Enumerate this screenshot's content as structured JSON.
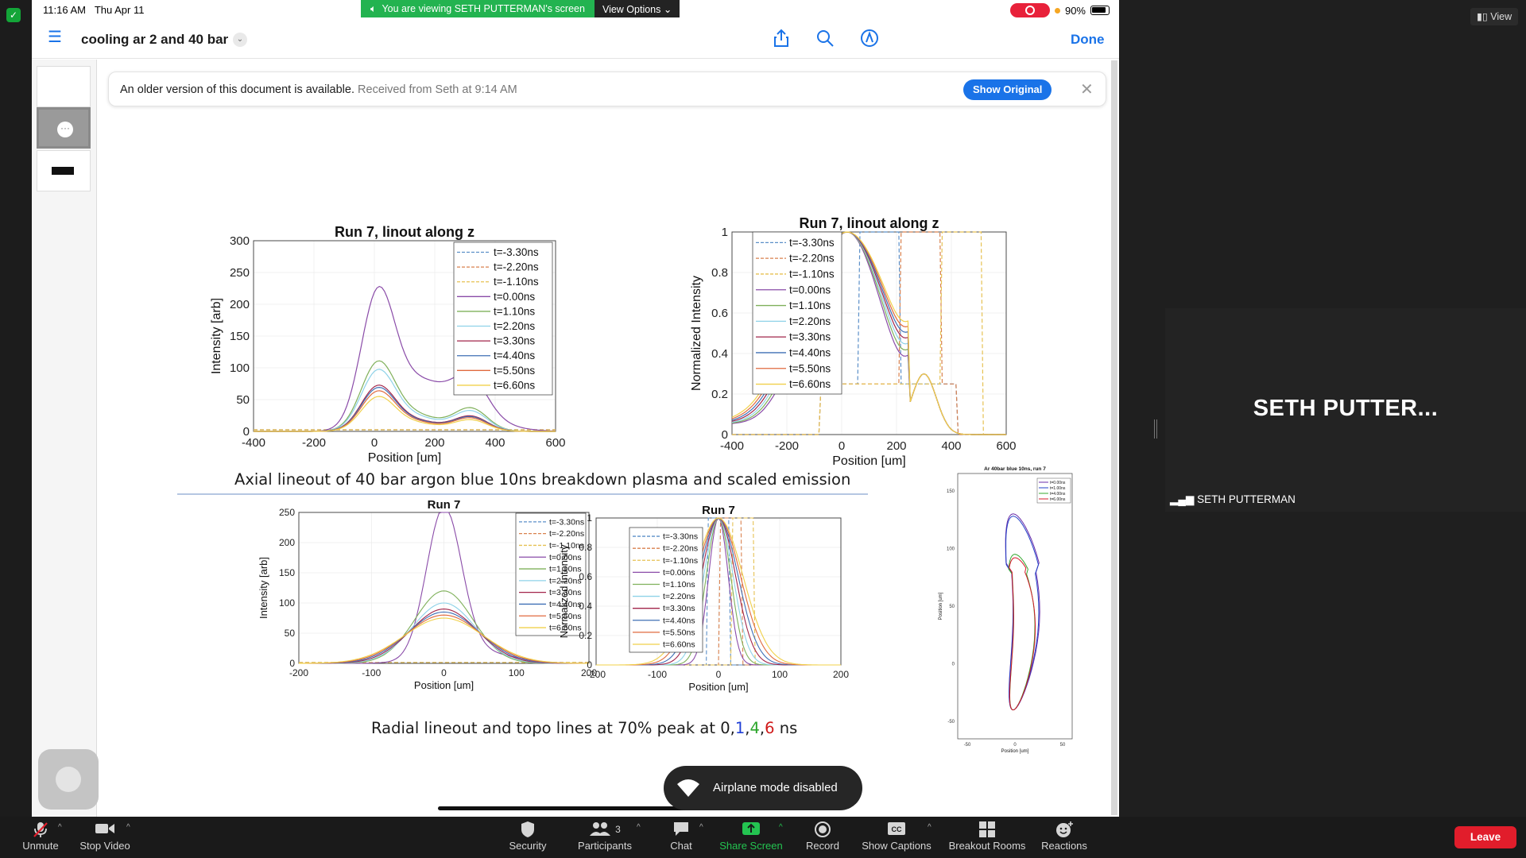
{
  "meeting": {
    "viewing_banner": "You are viewing SETH PUTTERMAN's screen",
    "view_options": "View Options",
    "view_button": "View",
    "participant_name": "SETH PUTTER...",
    "participant_label": "SETH PUTTERMAN"
  },
  "status_bar": {
    "time": "11:16 AM",
    "date": "Thu Apr 11",
    "battery": "90%"
  },
  "document": {
    "title": "cooling ar 2 and 40 bar",
    "done_label": "Done",
    "banner": {
      "message": "An older version of this document is available.",
      "received": "Received from Seth at 9:14 AM",
      "button": "Show Original"
    },
    "slide": {
      "axial_caption": "Axial lineout  of 40 bar argon blue 10ns breakdown plasma  and scaled emission",
      "radial_caption_prefix": "Radial lineout and topo lines at 70% peak at ",
      "radial_caption_times": [
        {
          "text": "0",
          "color": "#1c1c1c"
        },
        {
          "text": ",",
          "color": "#1c1c1c"
        },
        {
          "text": "1",
          "color": "#1f3fd6"
        },
        {
          "text": ",",
          "color": "#1c1c1c"
        },
        {
          "text": "4",
          "color": "#2aa52a"
        },
        {
          "text": ",",
          "color": "#1c1c1c"
        },
        {
          "text": "6",
          "color": "#d01a1a"
        },
        {
          "text": " ns",
          "color": "#1c1c1c"
        }
      ]
    }
  },
  "toast": {
    "text": "Airplane mode disabled"
  },
  "toolbar": {
    "unmute": "Unmute",
    "stop_video": "Stop Video",
    "security": "Security",
    "participants": "Participants",
    "participants_count": "3",
    "chat": "Chat",
    "share_screen": "Share Screen",
    "record": "Record",
    "show_captions": "Show Captions",
    "breakout_rooms": "Breakout Rooms",
    "reactions": "Reactions",
    "leave": "Leave"
  },
  "colors": {
    "ios_blue": "#1a73e8",
    "zoom_green": "#23b350",
    "leave_red": "#e11d2b"
  },
  "chart_data": [
    {
      "type": "line",
      "title": "Run 7, linout along z",
      "xlabel": "Position [um]",
      "ylabel": "Intensity [arb]",
      "xlim": [
        -400,
        600
      ],
      "ylim": [
        0,
        300
      ],
      "xticks": [
        -400,
        -200,
        0,
        200,
        400,
        600
      ],
      "yticks": [
        0,
        50,
        100,
        150,
        200,
        250,
        300
      ],
      "legend": [
        "t=-3.30ns",
        "t=-2.20ns",
        "t=-1.10ns",
        "t=0.00ns",
        "t=1.10ns",
        "t=2.20ns",
        "t=3.30ns",
        "t=4.40ns",
        "t=5.50ns",
        "t=6.60ns"
      ],
      "legend_position": "top-right",
      "series_peaks": [
        3,
        3,
        3,
        250,
        125,
        110,
        82,
        78,
        72,
        62
      ]
    },
    {
      "type": "line",
      "title": "Run 7, linout along z",
      "xlabel": "Position [um]",
      "ylabel": "Normalized Intensity",
      "xlim": [
        -400,
        600
      ],
      "ylim": [
        0,
        1
      ],
      "xticks": [
        -400,
        -200,
        0,
        200,
        400,
        600
      ],
      "yticks": [
        0,
        0.2,
        0.4,
        0.6,
        0.8,
        1
      ],
      "legend": [
        "t=-3.30ns",
        "t=-2.20ns",
        "t=-1.10ns",
        "t=0.00ns",
        "t=1.10ns",
        "t=2.20ns",
        "t=3.30ns",
        "t=4.40ns",
        "t=5.50ns",
        "t=6.60ns"
      ],
      "legend_position": "top-left"
    },
    {
      "type": "line",
      "title": "Run 7",
      "xlabel": "Position [um]",
      "ylabel": "Intensity [arb]",
      "xlim": [
        -200,
        200
      ],
      "ylim": [
        0,
        250
      ],
      "xticks": [
        -200,
        -100,
        0,
        100,
        200
      ],
      "yticks": [
        0,
        50,
        100,
        150,
        200,
        250
      ],
      "legend": [
        "t=-3.30ns",
        "t=-2.20ns",
        "t=-1.10ns",
        "t=0.00ns",
        "t=1.10ns",
        "t=2.20ns",
        "t=3.30ns",
        "t=4.40ns",
        "t=5.50ns",
        "t=6.60ns"
      ],
      "legend_position": "top-right",
      "series_peaks": [
        3,
        3,
        3,
        245,
        120,
        100,
        90,
        85,
        80,
        75
      ]
    },
    {
      "type": "line",
      "title": "Run 7",
      "xlabel": "Position [um]",
      "ylabel": "Normalized Intensity",
      "xlim": [
        -200,
        200
      ],
      "ylim": [
        0,
        1
      ],
      "xticks": [
        -200,
        -100,
        0,
        100,
        200
      ],
      "yticks": [
        0,
        0.2,
        0.4,
        0.6,
        0.8,
        1
      ],
      "legend": [
        "t=-3.30ns",
        "t=-2.20ns",
        "t=-1.10ns",
        "t=0.00ns",
        "t=1.10ns",
        "t=2.20ns",
        "t=3.30ns",
        "t=4.40ns",
        "t=5.50ns",
        "t=6.60ns"
      ],
      "legend_position": "top-left"
    },
    {
      "type": "line",
      "title": "Ar 40bar blue 10ns, run 7",
      "xlabel": "Position [um]",
      "ylabel": "Position [um]",
      "xlim": [
        -60,
        60
      ],
      "ylim": [
        -65,
        165
      ],
      "xticks": [
        -50,
        0,
        50
      ],
      "yticks": [
        -50,
        0,
        50,
        100,
        150
      ],
      "legend": [
        "t=0.00ns",
        "t=1.00ns",
        "t=4.00ns",
        "t=6.00ns"
      ],
      "legend_position": "top-right"
    }
  ]
}
